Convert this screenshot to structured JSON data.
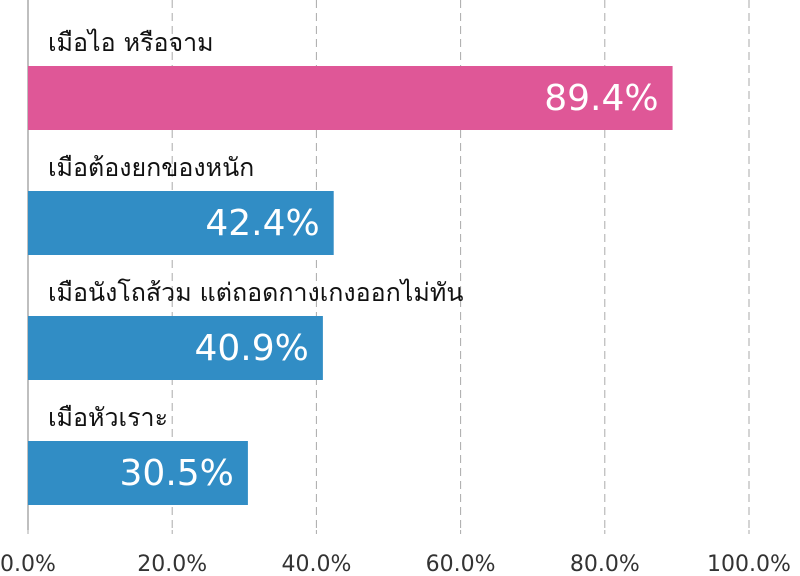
{
  "chart_data": {
    "type": "bar",
    "orientation": "horizontal",
    "categories": [
      "เมือไอ หรือจาม",
      "เมือต้องยกของหนัก",
      "เมือนังโถส้วม แต่ถอดกางเกงออกไม่ทัน",
      "เมือหัวเราะ"
    ],
    "values": [
      89.4,
      42.4,
      40.9,
      30.5
    ],
    "value_labels": [
      "89.4%",
      "42.4%",
      "40.9%",
      "30.5%"
    ],
    "colors": [
      "#df5797",
      "#318dc5",
      "#318dc5",
      "#318dc5"
    ],
    "xlim": [
      0,
      100
    ],
    "xticks": [
      {
        "value": 0,
        "label": "0.0%"
      },
      {
        "value": 20,
        "label": "20.0%"
      },
      {
        "value": 40,
        "label": "40.0%"
      },
      {
        "value": 60,
        "label": "60.0%"
      },
      {
        "value": 80,
        "label": "80.0%"
      },
      {
        "value": 100,
        "label": "100.0%"
      }
    ],
    "grid": true
  }
}
